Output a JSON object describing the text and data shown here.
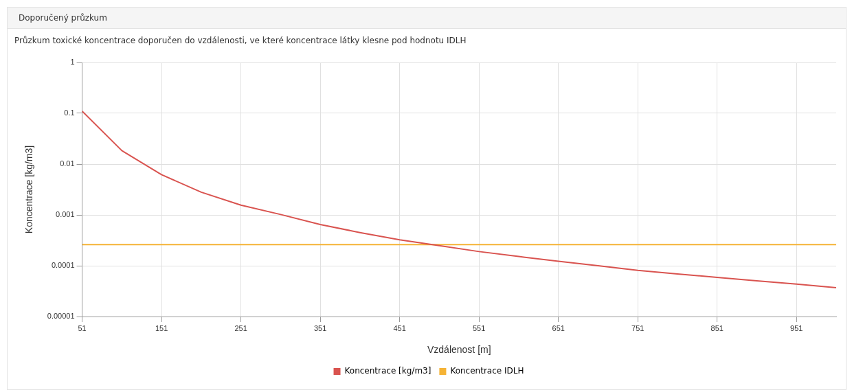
{
  "chart_data": {
    "type": "line",
    "title": "Doporučený průzkum",
    "subtitle": "Průzkum toxické koncentrace doporučen do vzdálenosti, ve které koncentrace látky klesne pod hodnotu IDLH",
    "xlabel": "Vzdálenost [m]",
    "ylabel": "Koncentrace [kg/m3]",
    "x": [
      51,
      101,
      151,
      201,
      251,
      301,
      351,
      401,
      451,
      501,
      551,
      601,
      651,
      701,
      751,
      801,
      851,
      901,
      951,
      1001
    ],
    "series": [
      {
        "name": "Koncentrace [kg/m3]",
        "color": "#d9534f",
        "values": [
          0.11,
          0.0184,
          0.0062,
          0.0028,
          0.00156,
          0.00102,
          0.000646,
          0.00045,
          0.000324,
          0.000248,
          0.00019,
          0.000152,
          0.000122,
          0.0001,
          8.13e-05,
          6.9e-05,
          5.9e-05,
          5.06e-05,
          4.34e-05,
          3.7e-05
        ]
      },
      {
        "name": "Koncentrace IDLH",
        "color": "#f5b335",
        "values": [
          0.00026,
          0.00026,
          0.00026,
          0.00026,
          0.00026,
          0.00026,
          0.00026,
          0.00026,
          0.00026,
          0.00026,
          0.00026,
          0.00026,
          0.00026,
          0.00026,
          0.00026,
          0.00026,
          0.00026,
          0.00026,
          0.00026,
          0.00026
        ]
      }
    ],
    "xlim": [
      51,
      1001
    ],
    "xticks": [
      51,
      151,
      251,
      351,
      451,
      551,
      651,
      751,
      851,
      951
    ],
    "ylim": [
      1e-05,
      1
    ],
    "yticks": [
      1,
      0.1,
      0.01,
      0.001,
      0.0001,
      {
        "value": 1e-05,
        "label": "0.00001"
      }
    ],
    "log": "y",
    "grid": true,
    "legend": "bottom",
    "marker": "none",
    "line_style": "solid"
  }
}
